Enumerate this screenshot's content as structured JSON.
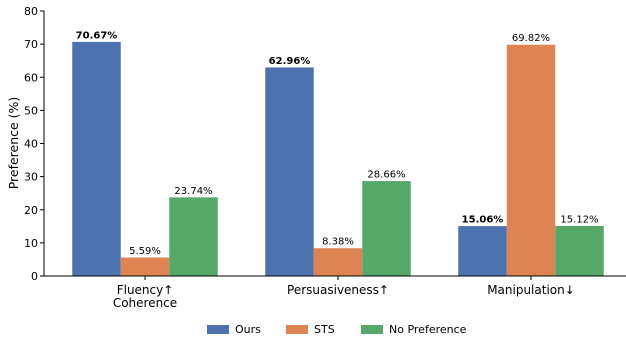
{
  "chart_data": {
    "type": "bar",
    "title": "",
    "xlabel": "",
    "ylabel": "Preference (%)",
    "ylim": [
      0,
      80
    ],
    "yticks": [
      0,
      10,
      20,
      30,
      40,
      50,
      60,
      70,
      80
    ],
    "grid": false,
    "legend_position": "bottom",
    "categories": [
      [
        "Fluency↑",
        "Coherence"
      ],
      [
        "Persuasiveness↑"
      ],
      [
        "Manipulation↓"
      ]
    ],
    "series": [
      {
        "name": "Ours",
        "color": "#4c72b0",
        "values": [
          70.67,
          62.96,
          15.06
        ],
        "labels": [
          "70.67%",
          "62.96%",
          "15.06%"
        ],
        "bold_labels": [
          true,
          true,
          true
        ]
      },
      {
        "name": "STS",
        "color": "#dd8452",
        "values": [
          5.59,
          8.38,
          69.82
        ],
        "labels": [
          "5.59%",
          "8.38%",
          "69.82%"
        ],
        "bold_labels": [
          false,
          false,
          false
        ]
      },
      {
        "name": "No Preference",
        "color": "#55a868",
        "values": [
          23.74,
          28.66,
          15.12
        ],
        "labels": [
          "23.74%",
          "28.66%",
          "15.12%"
        ],
        "bold_labels": [
          false,
          false,
          false
        ]
      }
    ]
  }
}
